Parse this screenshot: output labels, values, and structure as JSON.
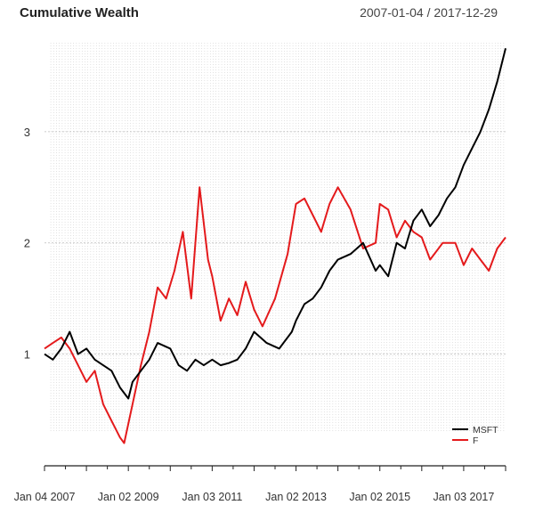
{
  "chart_data": {
    "type": "line",
    "title": "Cumulative Wealth",
    "date_range": "2007-01-04 / 2017-12-29",
    "x_tick_labels": [
      "Jan 04 2007",
      "Jan 02 2009",
      "Jan 03 2011",
      "Jan 02 2013",
      "Jan 02 2015",
      "Jan 03 2017"
    ],
    "x_ticks": [
      2007.0,
      2009.0,
      2011.0,
      2013.0,
      2015.0,
      2017.0
    ],
    "xlim": [
      2007.0,
      2018.0
    ],
    "y_ticks": [
      1,
      2,
      3
    ],
    "y_tick_labels": [
      "1",
      "2",
      "3"
    ],
    "ylim": [
      0.3,
      3.8
    ],
    "grid": true,
    "legend_position": "bottom-right",
    "series": [
      {
        "name": "MSFT",
        "color": "#000000",
        "x": [
          2007.0,
          2007.2,
          2007.4,
          2007.6,
          2007.8,
          2008.0,
          2008.2,
          2008.4,
          2008.6,
          2008.8,
          2009.0,
          2009.1,
          2009.3,
          2009.5,
          2009.7,
          2010.0,
          2010.2,
          2010.4,
          2010.6,
          2010.8,
          2011.0,
          2011.2,
          2011.4,
          2011.6,
          2011.8,
          2012.0,
          2012.3,
          2012.6,
          2012.9,
          2013.0,
          2013.2,
          2013.4,
          2013.6,
          2013.8,
          2014.0,
          2014.3,
          2014.6,
          2014.9,
          2015.0,
          2015.2,
          2015.4,
          2015.6,
          2015.8,
          2016.0,
          2016.2,
          2016.4,
          2016.6,
          2016.8,
          2017.0,
          2017.2,
          2017.4,
          2017.6,
          2017.8,
          2017.9,
          2018.0
        ],
        "y": [
          1.0,
          0.95,
          1.05,
          1.2,
          1.0,
          1.05,
          0.95,
          0.9,
          0.85,
          0.7,
          0.6,
          0.75,
          0.85,
          0.95,
          1.1,
          1.05,
          0.9,
          0.85,
          0.95,
          0.9,
          0.95,
          0.9,
          0.92,
          0.95,
          1.05,
          1.2,
          1.1,
          1.05,
          1.2,
          1.3,
          1.45,
          1.5,
          1.6,
          1.75,
          1.85,
          1.9,
          2.0,
          1.75,
          1.8,
          1.7,
          2.0,
          1.95,
          2.2,
          2.3,
          2.15,
          2.25,
          2.4,
          2.5,
          2.7,
          2.85,
          3.0,
          3.2,
          3.45,
          3.6,
          3.75
        ]
      },
      {
        "name": "F",
        "color": "#e41a1c",
        "x": [
          2007.0,
          2007.2,
          2007.4,
          2007.6,
          2007.8,
          2008.0,
          2008.2,
          2008.4,
          2008.6,
          2008.8,
          2008.9,
          2009.1,
          2009.3,
          2009.5,
          2009.7,
          2009.9,
          2010.1,
          2010.3,
          2010.5,
          2010.7,
          2010.9,
          2011.0,
          2011.2,
          2011.4,
          2011.6,
          2011.8,
          2012.0,
          2012.2,
          2012.5,
          2012.8,
          2013.0,
          2013.2,
          2013.4,
          2013.6,
          2013.8,
          2014.0,
          2014.3,
          2014.6,
          2014.9,
          2015.0,
          2015.2,
          2015.4,
          2015.6,
          2015.8,
          2016.0,
          2016.2,
          2016.5,
          2016.8,
          2017.0,
          2017.2,
          2017.4,
          2017.6,
          2017.8,
          2018.0
        ],
        "y": [
          1.05,
          1.1,
          1.15,
          1.05,
          0.9,
          0.75,
          0.85,
          0.55,
          0.4,
          0.25,
          0.2,
          0.55,
          0.9,
          1.2,
          1.6,
          1.5,
          1.75,
          2.1,
          1.5,
          2.5,
          1.85,
          1.7,
          1.3,
          1.5,
          1.35,
          1.65,
          1.4,
          1.25,
          1.5,
          1.9,
          2.35,
          2.4,
          2.25,
          2.1,
          2.35,
          2.5,
          2.3,
          1.95,
          2.0,
          2.35,
          2.3,
          2.05,
          2.2,
          2.1,
          2.05,
          1.85,
          2.0,
          2.0,
          1.8,
          1.95,
          1.85,
          1.75,
          1.95,
          2.05
        ]
      }
    ]
  }
}
